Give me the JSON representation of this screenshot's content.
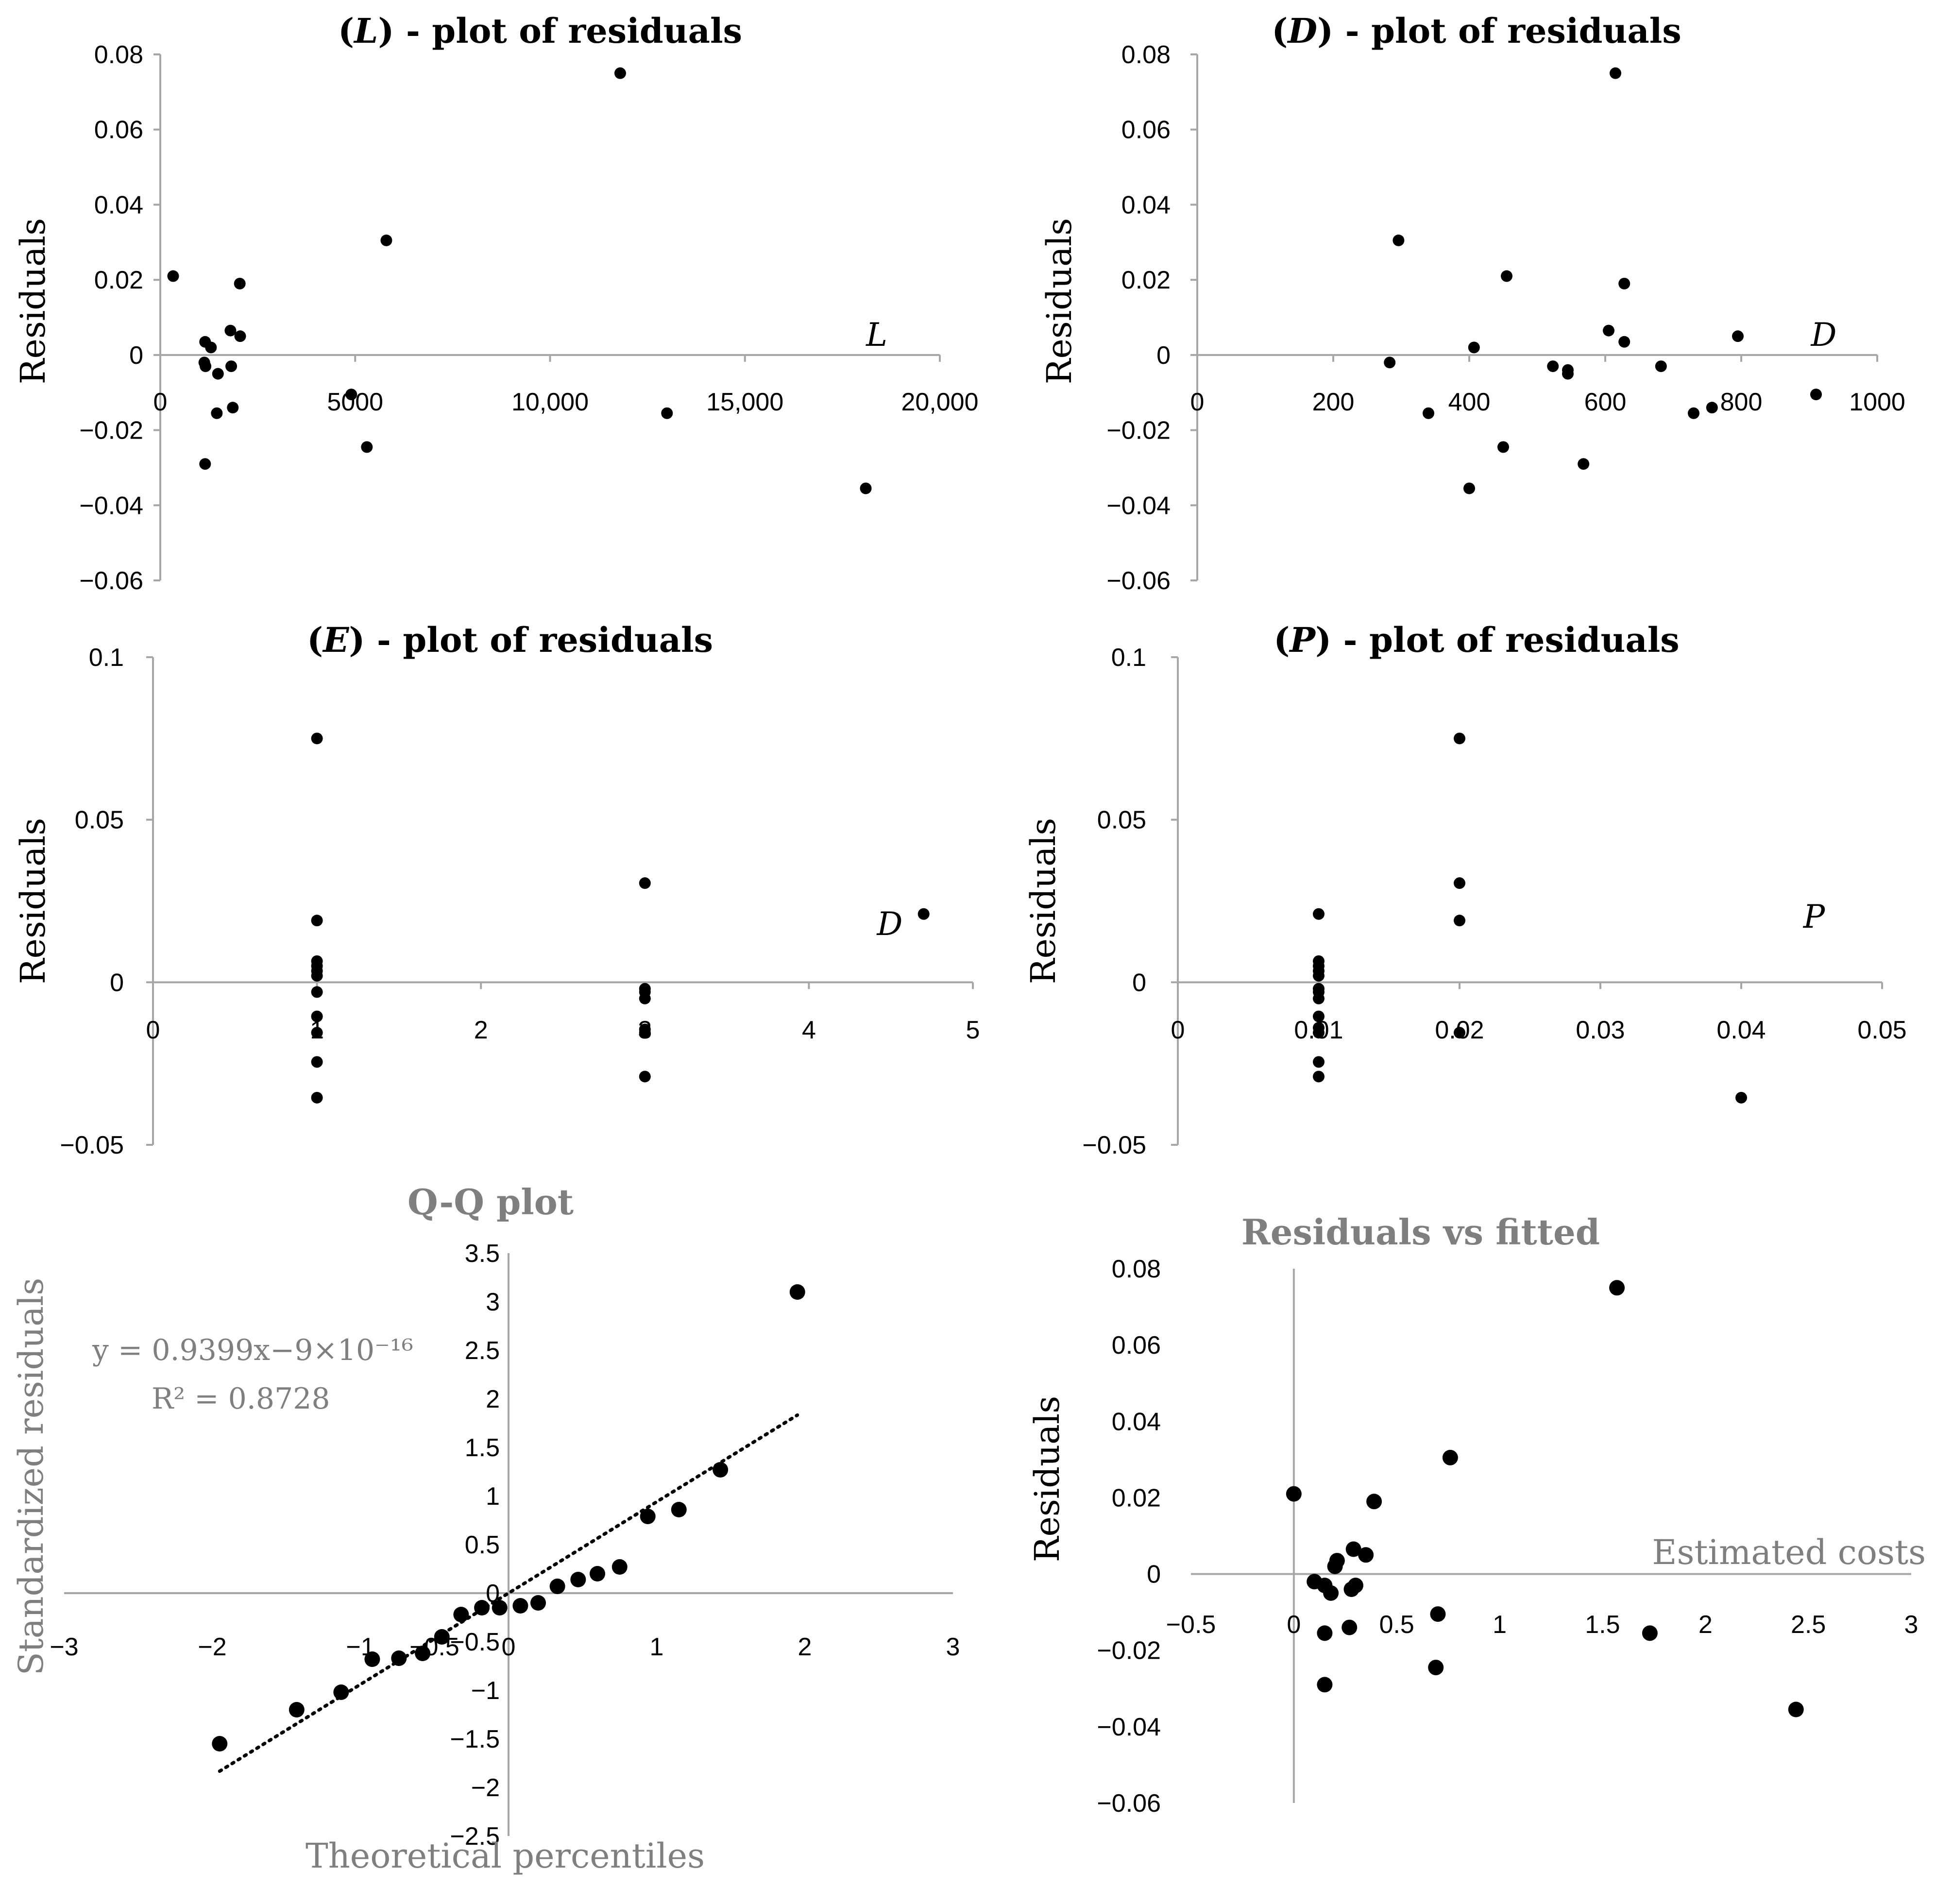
{
  "chart_data": [
    {
      "type": "scatter",
      "title": "(L) - plot of residuals",
      "title_italic_letter": "L",
      "title_rest": " - plot of residuals",
      "xlabel": "L",
      "ylabel": "Residuals",
      "xlim": [
        0,
        20000
      ],
      "ylim": [
        -0.06,
        0.08
      ],
      "x_ticks": [
        0,
        5000,
        10000,
        15000,
        20000
      ],
      "x_tick_labels": [
        "0",
        "5000",
        "10,000",
        "15,000",
        "20,000"
      ],
      "y_ticks": [
        -0.06,
        -0.04,
        -0.02,
        0,
        0.02,
        0.04,
        0.06,
        0.08
      ],
      "y_tick_labels": [
        "−0.06",
        "−0.04",
        "−0.02",
        "0",
        "0.02",
        "0.04",
        "0.06",
        "0.08"
      ],
      "points": [
        [
          11800,
          0.075
        ],
        [
          5800,
          0.0305
        ],
        [
          330,
          0.021
        ],
        [
          2040,
          0.019
        ],
        [
          1800,
          0.0065
        ],
        [
          2050,
          0.005
        ],
        [
          1150,
          0.0035
        ],
        [
          1300,
          0.002
        ],
        [
          1130,
          -0.002
        ],
        [
          1160,
          -0.003
        ],
        [
          1820,
          -0.003
        ],
        [
          1480,
          -0.005
        ],
        [
          4900,
          -0.0105
        ],
        [
          1860,
          -0.014
        ],
        [
          1450,
          -0.0155
        ],
        [
          13000,
          -0.0155
        ],
        [
          5300,
          -0.0245
        ],
        [
          1150,
          -0.029
        ],
        [
          18100,
          -0.0355
        ]
      ]
    },
    {
      "type": "scatter",
      "title": "(D) - plot of residuals",
      "title_italic_letter": "D",
      "title_rest": " - plot of residuals",
      "xlabel": "D",
      "ylabel": "Residuals",
      "xlim": [
        0,
        1000
      ],
      "ylim": [
        -0.06,
        0.08
      ],
      "x_ticks": [
        0,
        200,
        400,
        600,
        800,
        1000
      ],
      "x_tick_labels": [
        "0",
        "200",
        "400",
        "600",
        "800",
        "1000"
      ],
      "y_ticks": [
        -0.06,
        -0.04,
        -0.02,
        0,
        0.02,
        0.04,
        0.06,
        0.08
      ],
      "y_tick_labels": [
        "−0.06",
        "−0.04",
        "−0.02",
        "0",
        "0.02",
        "0.04",
        "0.06",
        "0.08"
      ],
      "points": [
        [
          615,
          0.075
        ],
        [
          296,
          0.0305
        ],
        [
          455,
          0.021
        ],
        [
          628,
          0.019
        ],
        [
          605,
          0.0065
        ],
        [
          795,
          0.005
        ],
        [
          628,
          0.0035
        ],
        [
          407,
          0.002
        ],
        [
          283,
          -0.002
        ],
        [
          523,
          -0.003
        ],
        [
          682,
          -0.003
        ],
        [
          545,
          -0.004
        ],
        [
          545,
          -0.005
        ],
        [
          910,
          -0.0105
        ],
        [
          757,
          -0.014
        ],
        [
          340,
          -0.0155
        ],
        [
          730,
          -0.0155
        ],
        [
          450,
          -0.0245
        ],
        [
          568,
          -0.029
        ],
        [
          400,
          -0.0355
        ]
      ]
    },
    {
      "type": "scatter",
      "title": "(E) - plot of residuals",
      "title_italic_letter": "E",
      "title_rest": " - plot of residuals",
      "xlabel": "D",
      "ylabel": "Residuals",
      "xlim": [
        0,
        5
      ],
      "ylim": [
        -0.05,
        0.1
      ],
      "x_ticks": [
        0,
        1,
        2,
        3,
        4,
        5
      ],
      "x_tick_labels": [
        "0",
        "1",
        "2",
        "3",
        "4",
        "5"
      ],
      "y_ticks": [
        -0.05,
        0,
        0.05,
        0.1
      ],
      "y_tick_labels": [
        "−0.05",
        "0",
        "0.05",
        "0.1"
      ],
      "points": [
        [
          1,
          0.075
        ],
        [
          1,
          0.019
        ],
        [
          1,
          0.0065
        ],
        [
          1,
          0.005
        ],
        [
          1,
          0.0035
        ],
        [
          1,
          0.002
        ],
        [
          1,
          -0.003
        ],
        [
          1,
          -0.0105
        ],
        [
          1,
          -0.0155
        ],
        [
          1,
          -0.0245
        ],
        [
          1,
          -0.0355
        ],
        [
          3,
          0.0305
        ],
        [
          3,
          -0.002
        ],
        [
          3,
          -0.003
        ],
        [
          3,
          -0.005
        ],
        [
          3,
          -0.0145
        ],
        [
          3,
          -0.0155
        ],
        [
          3,
          -0.029
        ],
        [
          4.7,
          0.021
        ]
      ]
    },
    {
      "type": "scatter",
      "title": "(P) - plot of residuals",
      "title_italic_letter": "P",
      "title_rest": " - plot of residuals",
      "xlabel": "P",
      "ylabel": "Residuals",
      "xlim": [
        0,
        0.05
      ],
      "ylim": [
        -0.05,
        0.1
      ],
      "x_ticks": [
        0,
        0.01,
        0.02,
        0.03,
        0.04,
        0.05
      ],
      "x_tick_labels": [
        "0",
        "0.01",
        "0.02",
        "0.03",
        "0.04",
        "0.05"
      ],
      "y_ticks": [
        -0.05,
        0,
        0.05,
        0.1
      ],
      "y_tick_labels": [
        "−0.05",
        "0",
        "0.05",
        "0.1"
      ],
      "points": [
        [
          0.01,
          0.021
        ],
        [
          0.01,
          0.0065
        ],
        [
          0.01,
          0.005
        ],
        [
          0.01,
          0.0035
        ],
        [
          0.01,
          0.002
        ],
        [
          0.01,
          -0.002
        ],
        [
          0.01,
          -0.003
        ],
        [
          0.01,
          -0.005
        ],
        [
          0.01,
          -0.0105
        ],
        [
          0.01,
          -0.014
        ],
        [
          0.01,
          -0.0155
        ],
        [
          0.01,
          -0.0245
        ],
        [
          0.01,
          -0.029
        ],
        [
          0.02,
          0.075
        ],
        [
          0.02,
          0.0305
        ],
        [
          0.02,
          0.019
        ],
        [
          0.02,
          -0.0155
        ],
        [
          0.04,
          -0.0355
        ]
      ]
    },
    {
      "type": "scatter",
      "title": "Q-Q plot",
      "xlabel": "Theoretical percentiles",
      "ylabel": "Standardized residuals",
      "xlim": [
        -3,
        3
      ],
      "ylim": [
        -2.5,
        3.5
      ],
      "x_ticks": [
        -3,
        -2,
        -1,
        -0.5,
        0,
        1,
        2,
        3
      ],
      "x_tick_labels": [
        "−3",
        "−2",
        "−1",
        "−0.5",
        "0",
        "1",
        "2",
        "3"
      ],
      "y_ticks": [
        -2.5,
        -2,
        -1.5,
        -1,
        -0.5,
        0,
        0.5,
        1,
        1.5,
        2,
        2.5,
        3,
        3.5
      ],
      "y_tick_labels": [
        "−2.5",
        "−2",
        "−1.5",
        "−1",
        "−0.5",
        "0",
        "0.5",
        "1",
        "1.5",
        "2",
        "2.5",
        "3",
        "3.5"
      ],
      "equation": "y = 0.9399x−9×10⁻¹⁶",
      "r_squared": "R² = 0.8728",
      "trendline": {
        "slope": 0.9399,
        "intercept": 0,
        "x_range": [
          -1.95,
          1.95
        ]
      },
      "points": [
        [
          -1.95,
          -1.55
        ],
        [
          -1.43,
          -1.2
        ],
        [
          -1.13,
          -1.02
        ],
        [
          -0.92,
          -0.68
        ],
        [
          -0.74,
          -0.67
        ],
        [
          -0.58,
          -0.62
        ],
        [
          -0.45,
          -0.45
        ],
        [
          -0.32,
          -0.22
        ],
        [
          -0.18,
          -0.15
        ],
        [
          -0.06,
          -0.15
        ],
        [
          0.08,
          -0.13
        ],
        [
          0.2,
          -0.1
        ],
        [
          0.33,
          0.07
        ],
        [
          0.47,
          0.14
        ],
        [
          0.6,
          0.2
        ],
        [
          0.75,
          0.27
        ],
        [
          0.94,
          0.79
        ],
        [
          1.15,
          0.86
        ],
        [
          1.43,
          1.27
        ],
        [
          1.95,
          3.1
        ]
      ]
    },
    {
      "type": "scatter",
      "title": "Residuals vs fitted",
      "xlabel": "Estimated costs",
      "ylabel": "Residuals",
      "xlim": [
        -0.5,
        3
      ],
      "ylim": [
        -0.06,
        0.08
      ],
      "x_ticks": [
        -0.5,
        0,
        0.5,
        1,
        1.5,
        2,
        2.5,
        3
      ],
      "x_tick_labels": [
        "−0.5",
        "0",
        "0.5",
        "1",
        "1.5",
        "2",
        "2.5",
        "3"
      ],
      "y_ticks": [
        -0.06,
        -0.04,
        -0.02,
        0,
        0.02,
        0.04,
        0.06,
        0.08
      ],
      "y_tick_labels": [
        "−0.06",
        "−0.04",
        "−0.02",
        "0",
        "0.02",
        "0.04",
        "0.06",
        "0.08"
      ],
      "points": [
        [
          1.57,
          0.075
        ],
        [
          0.76,
          0.0305
        ],
        [
          0.0,
          0.021
        ],
        [
          0.39,
          0.019
        ],
        [
          0.29,
          0.0065
        ],
        [
          0.35,
          0.005
        ],
        [
          0.21,
          0.0035
        ],
        [
          0.2,
          0.002
        ],
        [
          0.1,
          -0.002
        ],
        [
          0.15,
          -0.003
        ],
        [
          0.3,
          -0.003
        ],
        [
          0.28,
          -0.004
        ],
        [
          0.18,
          -0.005
        ],
        [
          0.7,
          -0.0105
        ],
        [
          0.27,
          -0.014
        ],
        [
          0.15,
          -0.0155
        ],
        [
          1.73,
          -0.0155
        ],
        [
          0.69,
          -0.0245
        ],
        [
          0.15,
          -0.029
        ],
        [
          2.44,
          -0.0355
        ]
      ]
    }
  ]
}
